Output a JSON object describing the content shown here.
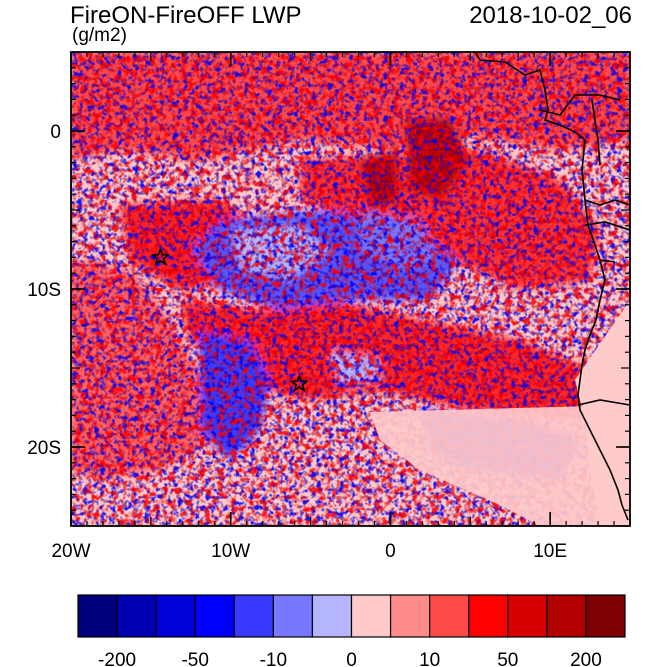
{
  "header": {
    "title": "FireON-FireOFF LWP",
    "timestamp": "2018-10-02_06",
    "units": "(g/m2)"
  },
  "map": {
    "lon_range": [
      -20,
      15
    ],
    "lat_range": [
      -25,
      5
    ],
    "lon_ticks": [
      {
        "value": -20,
        "label": "20W"
      },
      {
        "value": -10,
        "label": "10W"
      },
      {
        "value": 0,
        "label": "0"
      },
      {
        "value": 10,
        "label": "10E"
      }
    ],
    "lat_ticks": [
      {
        "value": 0,
        "label": "0"
      },
      {
        "value": -10,
        "label": "10S"
      },
      {
        "value": -20,
        "label": "20S"
      }
    ],
    "markers": [
      {
        "name": "star",
        "lon": -14.4,
        "lat": -8.0
      },
      {
        "name": "star",
        "lon": -5.7,
        "lat": -16.0
      }
    ]
  },
  "colorbar": {
    "colors": [
      "#00007f",
      "#0000b2",
      "#0000d9",
      "#0000ff",
      "#3a3aff",
      "#7878ff",
      "#b5b5ff",
      "#ffcaca",
      "#ff8a8a",
      "#ff4a4a",
      "#ff0000",
      "#d90000",
      "#b20000",
      "#7f0000"
    ],
    "labels": [
      "-200",
      "-50",
      "-10",
      "0",
      "10",
      "50",
      "200"
    ]
  },
  "colors": {
    "dark_blue": "#00007f",
    "blue": "#0000ff",
    "light_blue": "#b5b5ff",
    "pink": "#ffcaca",
    "red": "#ff0000",
    "dark_red": "#7f0000"
  }
}
